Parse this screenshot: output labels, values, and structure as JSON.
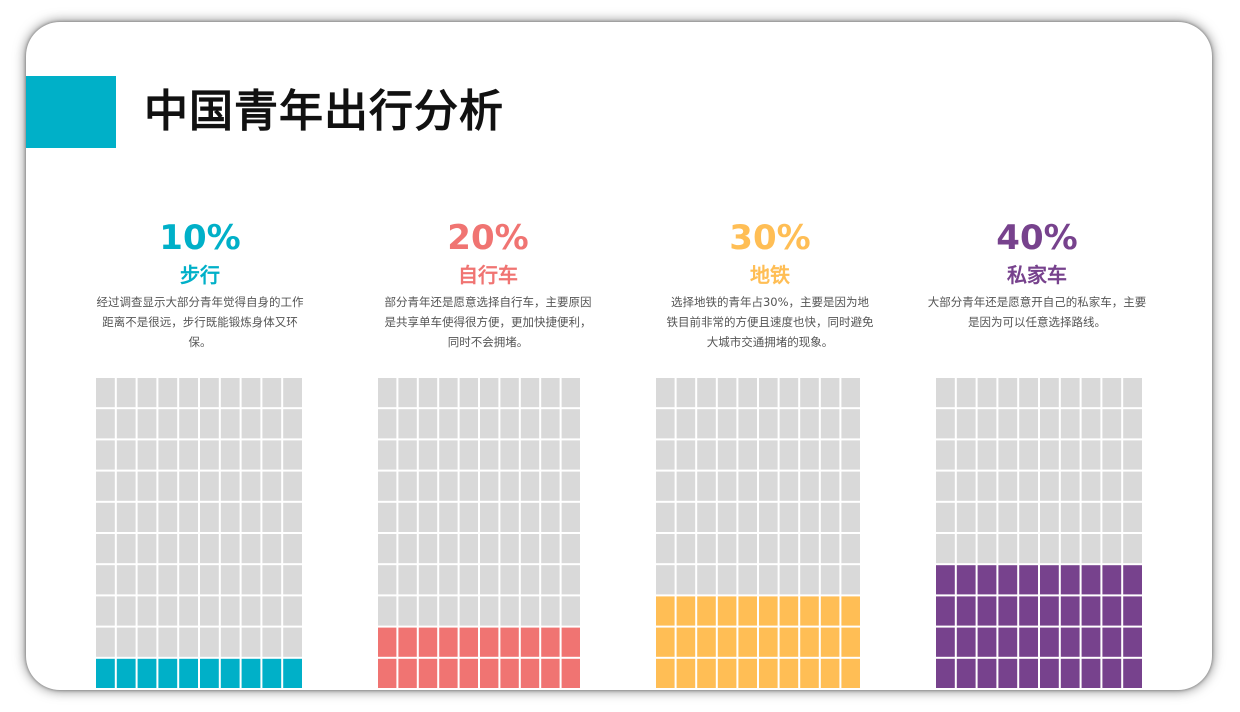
{
  "title": "中国青年出行分析",
  "columns": [
    {
      "percent": "10%",
      "label": "步行",
      "description": "经过调查显示大部分青年觉得自身的工作距离不是很远，步行既能锻炼身体又环保。",
      "color": "#00B0C8"
    },
    {
      "percent": "20%",
      "label": "自行车",
      "description": "部分青年还是愿意选择自行车，主要原因是共享单车使得很方便，更加快捷便利，同时不会拥堵。",
      "color": "#F07472"
    },
    {
      "percent": "30%",
      "label": "地铁",
      "description": "选择地铁的青年占30%，主要是因为地铁目前非常的方便且速度也快，同时避免大城市交通拥堵的现象。",
      "color": "#FFBE55"
    },
    {
      "percent": "40%",
      "label": "私家车",
      "description": "大部分青年还是愿意开自己的私家车，主要是因为可以任意选择路线。",
      "color": "#77428D"
    }
  ],
  "chart_data": {
    "type": "bar",
    "categories": [
      "步行",
      "自行车",
      "地铁",
      "私家车"
    ],
    "values": [
      10,
      20,
      30,
      40
    ],
    "unit": "%",
    "waffle_rows_visible": 10,
    "waffle_cols": 10,
    "empty_color": "#D9D9D9"
  }
}
